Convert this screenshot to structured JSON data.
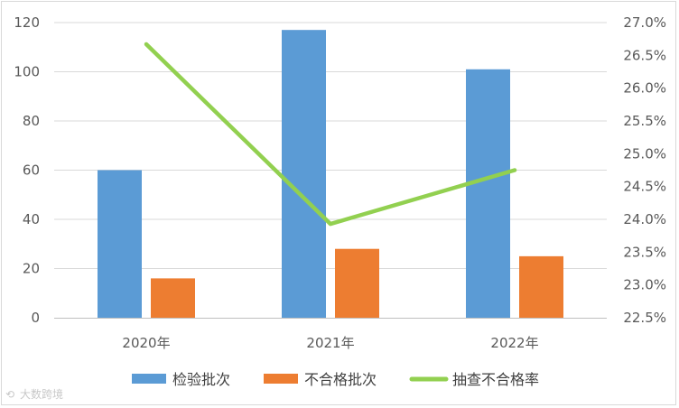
{
  "chart_data": {
    "type": "bar",
    "categories": [
      "2020年",
      "2021年",
      "2022年"
    ],
    "series": [
      {
        "name": "检验批次",
        "type": "bar",
        "axis": "left",
        "color": "#5B9BD5",
        "values": [
          60,
          117,
          101
        ]
      },
      {
        "name": "不合格批次",
        "type": "bar",
        "axis": "left",
        "color": "#ED7D31",
        "values": [
          16,
          28,
          25
        ]
      },
      {
        "name": "抽查不合格率",
        "type": "line",
        "axis": "right",
        "color": "#92D050",
        "values": [
          26.67,
          23.93,
          24.75
        ]
      }
    ],
    "y_left": {
      "min": 0,
      "max": 120,
      "ticks": [
        "0",
        "20",
        "40",
        "60",
        "80",
        "100",
        "120"
      ]
    },
    "y_right": {
      "min": 22.5,
      "max": 27.0,
      "ticks": [
        "22.5%",
        "23.0%",
        "23.5%",
        "24.0%",
        "24.5%",
        "25.0%",
        "25.5%",
        "26.0%",
        "26.5%",
        "27.0%"
      ]
    },
    "grid": true,
    "legend_position": "bottom",
    "watermark": "大数跨境"
  }
}
